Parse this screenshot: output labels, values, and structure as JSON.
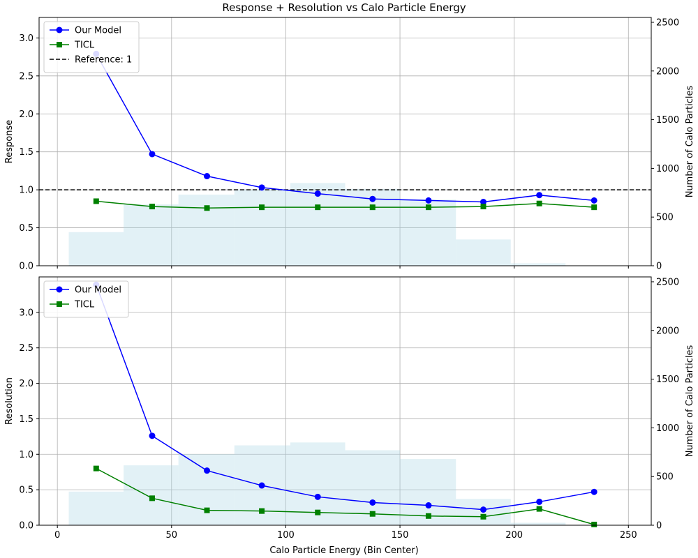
{
  "chart_data": [
    {
      "type": "line",
      "title": "Response + Resolution vs Calo Particle Energy",
      "xlabel": "",
      "ylabel": "Response",
      "y2label": "Number of Calo Particles",
      "xlim": [
        -8,
        260
      ],
      "ylim": [
        0,
        3.27
      ],
      "y2lim": [
        0,
        2550
      ],
      "grid": true,
      "legend_position": "top-left",
      "x_ticks": [
        0,
        50,
        100,
        150,
        200,
        250
      ],
      "x_tick_labels": [
        "",
        "",
        "",
        "",
        "",
        ""
      ],
      "y_ticks": [
        0.0,
        0.5,
        1.0,
        1.5,
        2.0,
        2.5,
        3.0
      ],
      "y_tick_labels": [
        "0.0",
        "0.5",
        "1.0",
        "1.5",
        "2.0",
        "2.5",
        "3.0"
      ],
      "y2_ticks": [
        0,
        500,
        1000,
        1500,
        2000,
        2500
      ],
      "y2_tick_labels": [
        "0",
        "500",
        "1000",
        "1500",
        "2000",
        "2500"
      ],
      "x": [
        17,
        41.5,
        65.5,
        89.5,
        114,
        138,
        162.5,
        186.5,
        211,
        235
      ],
      "series": [
        {
          "name": "Our Model",
          "color": "#0000ff",
          "marker": "circle",
          "values": [
            2.79,
            1.47,
            1.18,
            1.03,
            0.95,
            0.88,
            0.86,
            0.84,
            0.93,
            0.86
          ]
        },
        {
          "name": "TICL",
          "color": "#008000",
          "marker": "square",
          "values": [
            0.85,
            0.78,
            0.76,
            0.77,
            0.77,
            0.77,
            0.77,
            0.78,
            0.82,
            0.77
          ]
        }
      ],
      "reference": {
        "name": "Reference: 1",
        "value": 1.0,
        "color": "#000000"
      },
      "histogram": {
        "color": "#add8e6",
        "bins": [
          5,
          29,
          53,
          77.5,
          102,
          126,
          150,
          174.5,
          198.5,
          222.5
        ],
        "counts": [
          345,
          630,
          730,
          780,
          850,
          790,
          680,
          270,
          25
        ]
      }
    },
    {
      "type": "line",
      "title": "",
      "xlabel": "Calo Particle Energy (Bin Center)",
      "ylabel": "Resolution",
      "y2label": "Number of Calo Particles",
      "xlim": [
        -8,
        260
      ],
      "ylim": [
        0,
        3.5
      ],
      "y2lim": [
        0,
        2550
      ],
      "grid": true,
      "legend_position": "top-left",
      "x_ticks": [
        0,
        50,
        100,
        150,
        200,
        250
      ],
      "x_tick_labels": [
        "0",
        "50",
        "100",
        "150",
        "200",
        "250"
      ],
      "y_ticks": [
        0.0,
        0.5,
        1.0,
        1.5,
        2.0,
        2.5,
        3.0
      ],
      "y_tick_labels": [
        "0.0",
        "0.5",
        "1.0",
        "1.5",
        "2.0",
        "2.5",
        "3.0"
      ],
      "y2_ticks": [
        0,
        500,
        1000,
        1500,
        2000,
        2500
      ],
      "y2_tick_labels": [
        "0",
        "500",
        "1000",
        "1500",
        "2000",
        "2500"
      ],
      "x": [
        17,
        41.5,
        65.5,
        89.5,
        114,
        138,
        162.5,
        186.5,
        211,
        235
      ],
      "series": [
        {
          "name": "Our Model",
          "color": "#0000ff",
          "marker": "circle",
          "values": [
            3.39,
            1.26,
            0.77,
            0.56,
            0.4,
            0.32,
            0.28,
            0.22,
            0.33,
            0.47
          ]
        },
        {
          "name": "TICL",
          "color": "#008000",
          "marker": "square",
          "values": [
            0.8,
            0.38,
            0.21,
            0.2,
            0.18,
            0.16,
            0.13,
            0.12,
            0.23,
            0.01
          ]
        }
      ],
      "histogram": {
        "color": "#add8e6",
        "bins": [
          5,
          29,
          53,
          77.5,
          102,
          126,
          150,
          174.5,
          198.5,
          222.5
        ],
        "counts": [
          345,
          615,
          730,
          820,
          850,
          770,
          680,
          270,
          25
        ]
      }
    }
  ]
}
